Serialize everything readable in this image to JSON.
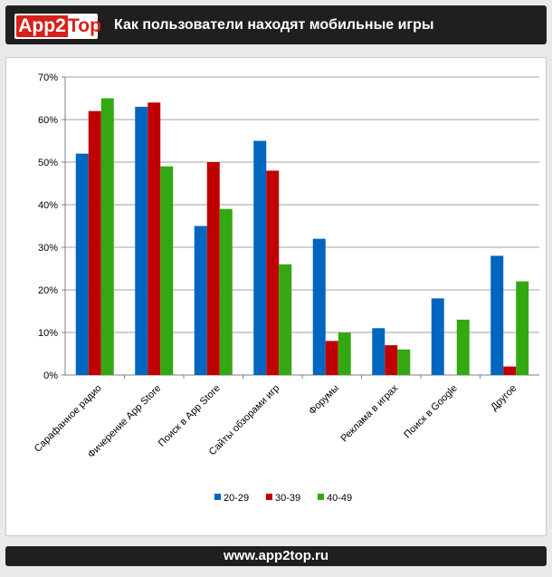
{
  "header": {
    "logo_part1": "App2",
    "logo_part2": "Top",
    "title": "Как пользователи находят мобильные игры"
  },
  "footer": {
    "url": "www.app2top.ru"
  },
  "colors": {
    "series": [
      "#0066bf",
      "#c00000",
      "#33a812"
    ],
    "grid": "#a0a0a0",
    "axis": "#7f7f7f"
  },
  "chart_data": {
    "type": "bar",
    "categories": [
      "Сарафанное радио",
      "Фичерение App Store",
      "Поиск в App Store",
      "Сайты обзорами игр",
      "Форумы",
      "Реклама в играх",
      "Поиск в Google",
      "Другое"
    ],
    "series": [
      {
        "name": "20-29",
        "values": [
          52,
          63,
          35,
          55,
          32,
          11,
          18,
          28
        ]
      },
      {
        "name": "30-39",
        "values": [
          62,
          64,
          50,
          48,
          8,
          7,
          0,
          2
        ]
      },
      {
        "name": "40-49",
        "values": [
          65,
          49,
          39,
          26,
          10,
          6,
          13,
          22
        ]
      }
    ],
    "ylim": [
      0,
      70
    ],
    "yticks": [
      "0%",
      "10%",
      "20%",
      "30%",
      "40%",
      "50%",
      "60%",
      "70%"
    ],
    "unit": "%",
    "grid": true,
    "legend": "bottom",
    "title": "",
    "xlabel": "",
    "ylabel": ""
  }
}
